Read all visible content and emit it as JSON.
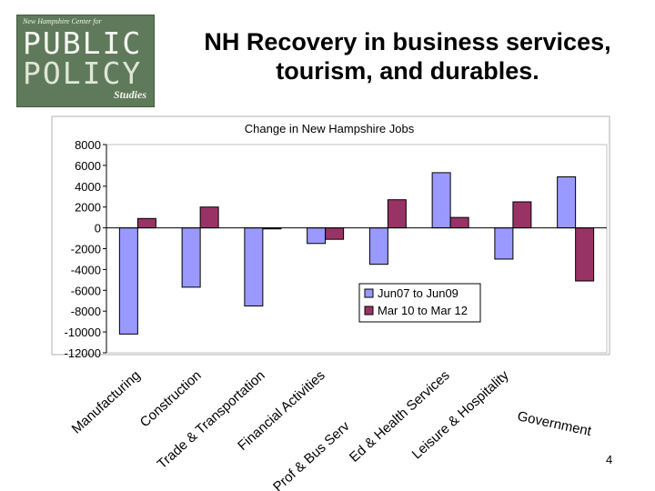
{
  "slide": {
    "title_line1": "NH Recovery in business services,",
    "title_line2": "tourism, and durables.",
    "page_number": "4"
  },
  "logo": {
    "tagline": "New Hampshire Center for",
    "word1": "PUBLIC",
    "word2": "POLICY",
    "word3": "Studies"
  },
  "chart_data": {
    "type": "bar",
    "title": "Change in New Hampshire Jobs",
    "categories": [
      "Manufacturing",
      "Construction",
      "Trade & Transportation",
      "Financial Activities",
      "Prof & Bus Serv",
      "Ed & Health Services",
      "Leisure & Hospitality",
      "Government"
    ],
    "series": [
      {
        "name": "Jun07 to Jun09",
        "color": "#9999ff",
        "values": [
          -10200,
          -5700,
          -7500,
          -1500,
          -3500,
          5300,
          -3000,
          4900
        ]
      },
      {
        "name": "Mar 10 to Mar 12",
        "color": "#993366",
        "values": [
          900,
          2000,
          -100,
          -1100,
          2700,
          1000,
          2500,
          -5100
        ]
      }
    ],
    "ylim": [
      -12000,
      8000
    ],
    "yticks": [
      8000,
      6000,
      4000,
      2000,
      0,
      -2000,
      -4000,
      -6000,
      -8000,
      -10000,
      -12000
    ],
    "ytick_labels": [
      "8000",
      "6000",
      "4000",
      "2000",
      "0",
      "-2000",
      "-4000",
      "-6000",
      "-8000",
      "-10000",
      "-12000"
    ],
    "grid": false,
    "legend_position": "center-right"
  }
}
